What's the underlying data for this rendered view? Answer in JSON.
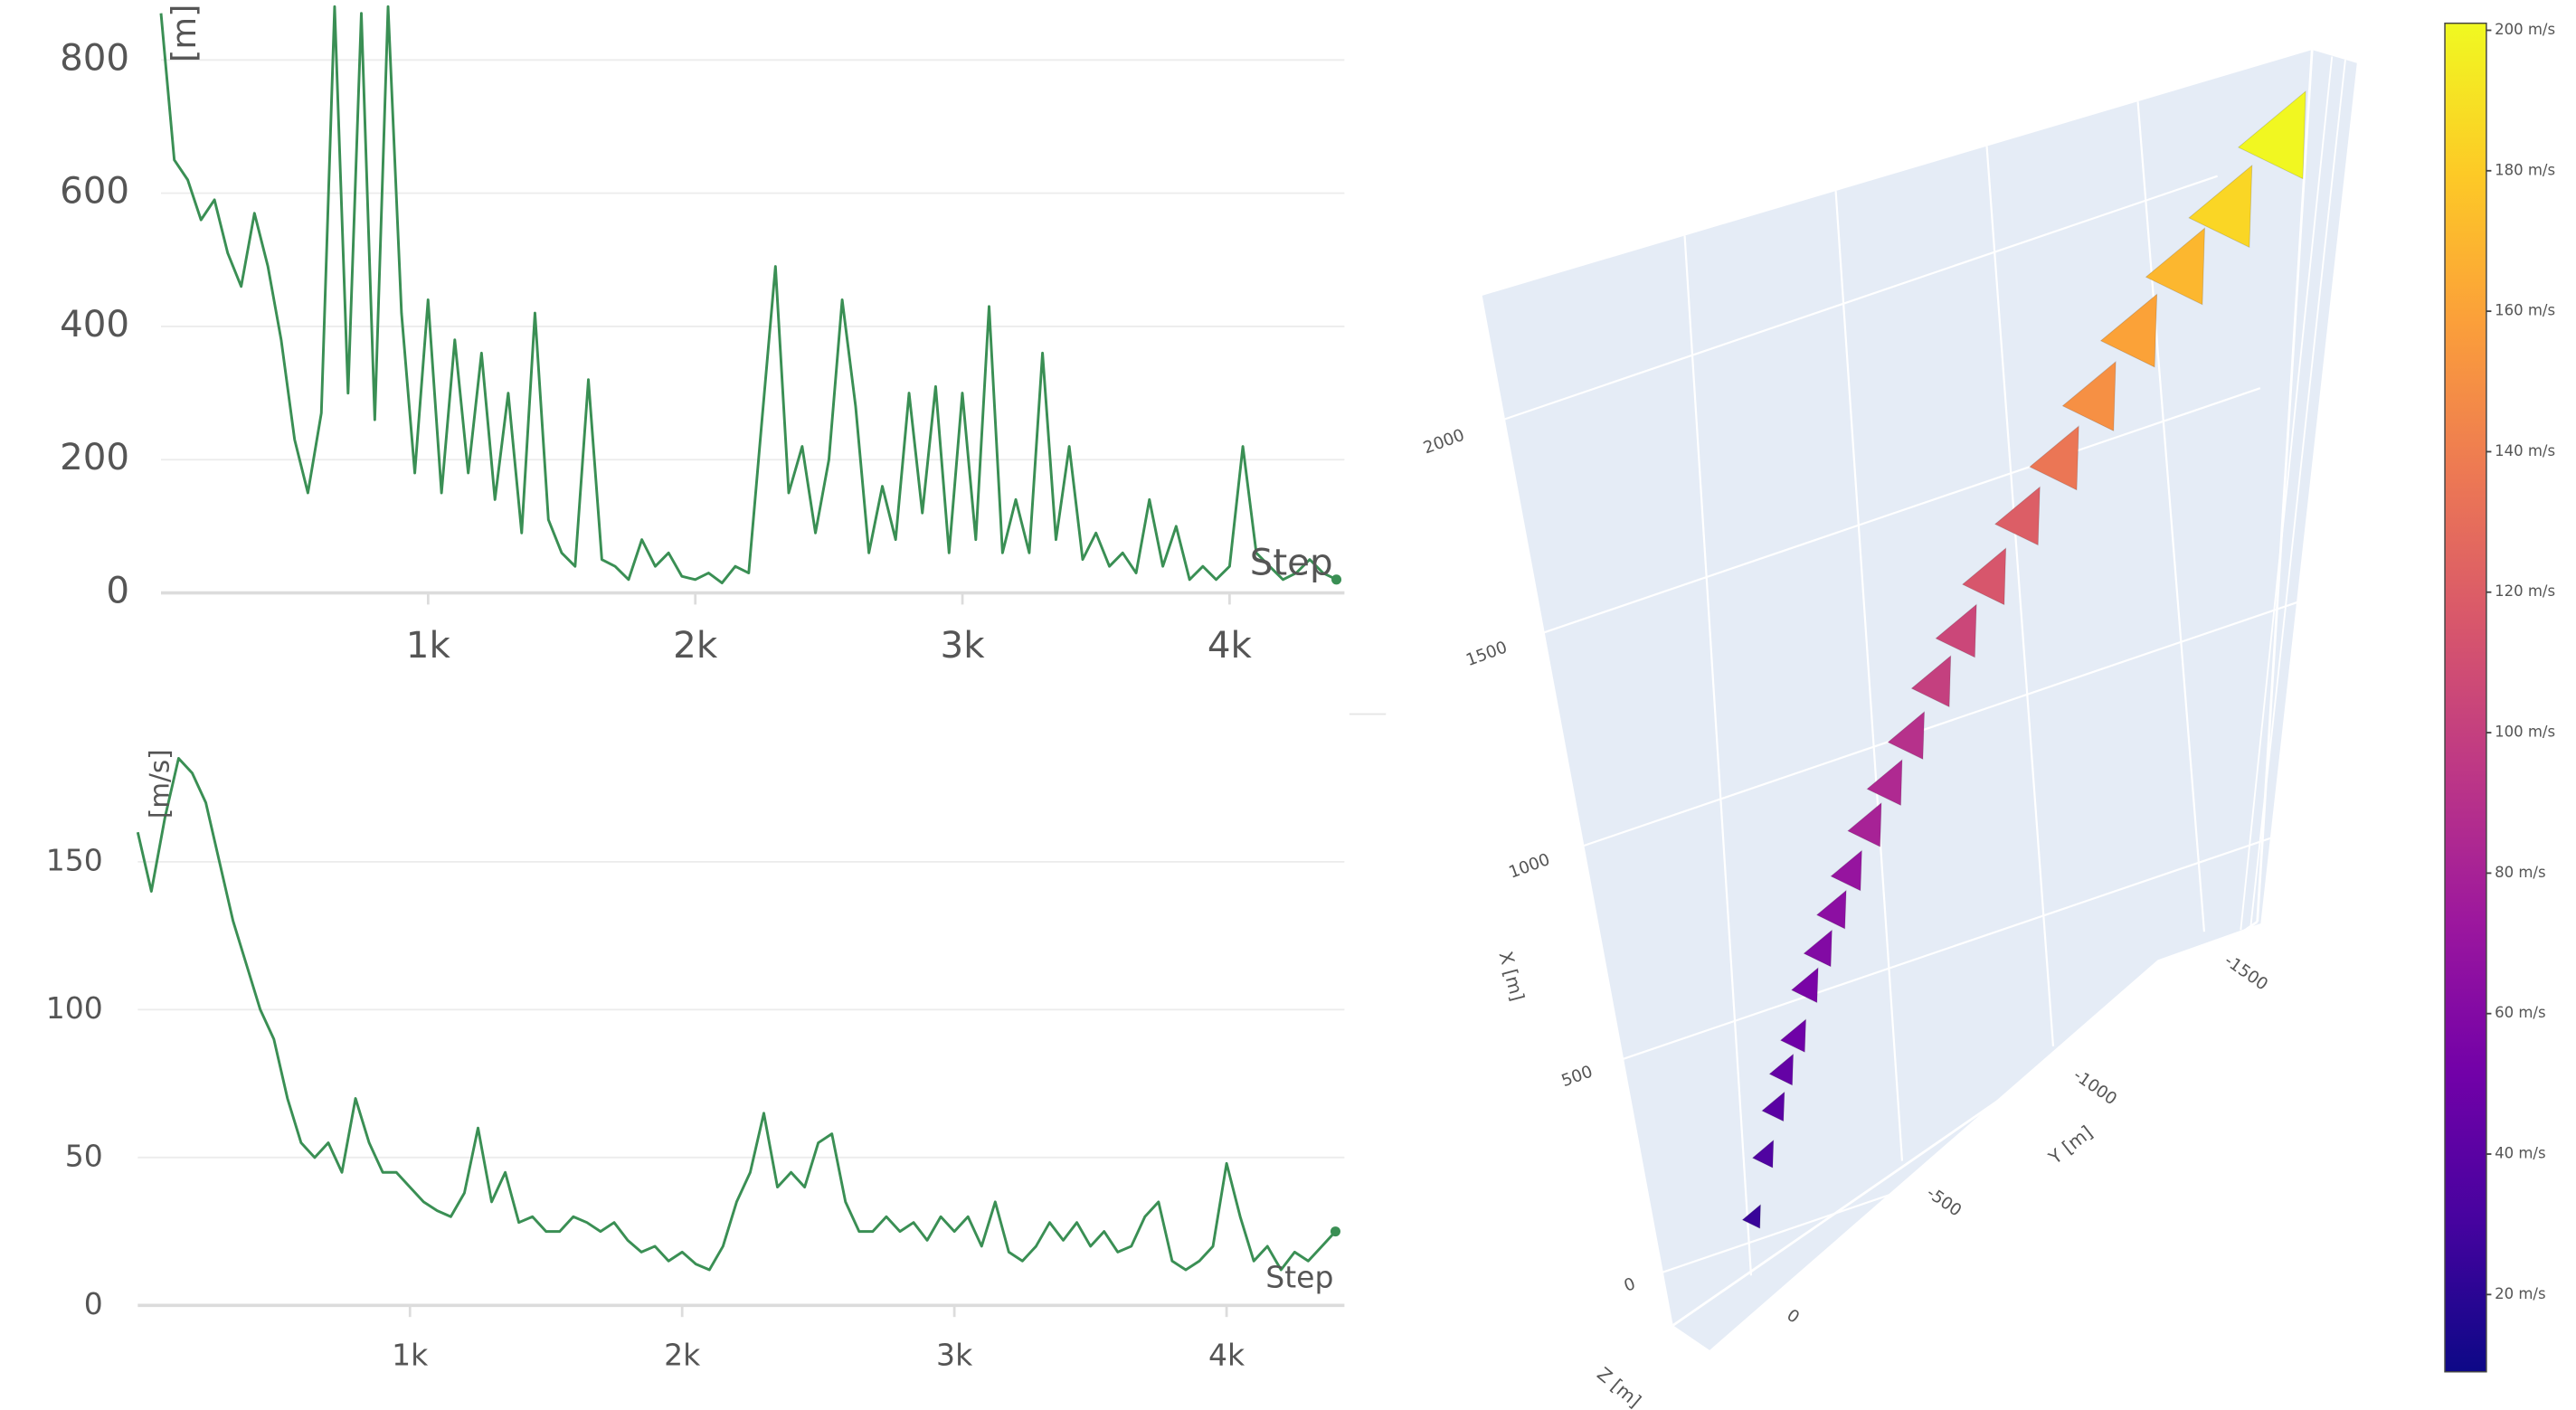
{
  "chart_data": [
    {
      "type": "line",
      "y_label": "[m]",
      "x_label": "Step",
      "color": "#3a8f54",
      "grid": true,
      "xlim": [
        0,
        4430
      ],
      "ylim": [
        0,
        890
      ],
      "xticks": [
        {
          "value": 1000,
          "label": "1k"
        },
        {
          "value": 2000,
          "label": "2k"
        },
        {
          "value": 3000,
          "label": "3k"
        },
        {
          "value": 4000,
          "label": "4k"
        }
      ],
      "yticks": [
        0,
        200,
        400,
        600,
        800
      ],
      "x": [
        0,
        50,
        100,
        150,
        200,
        250,
        300,
        350,
        400,
        450,
        500,
        550,
        600,
        650,
        700,
        750,
        800,
        850,
        900,
        950,
        1000,
        1050,
        1100,
        1150,
        1200,
        1250,
        1300,
        1350,
        1400,
        1450,
        1500,
        1550,
        1600,
        1650,
        1700,
        1750,
        1800,
        1850,
        1900,
        1950,
        2000,
        2050,
        2100,
        2150,
        2200,
        2250,
        2300,
        2350,
        2400,
        2450,
        2500,
        2550,
        2600,
        2650,
        2700,
        2750,
        2800,
        2850,
        2900,
        2950,
        3000,
        3050,
        3100,
        3150,
        3200,
        3250,
        3300,
        3350,
        3400,
        3450,
        3500,
        3550,
        3600,
        3650,
        3700,
        3750,
        3800,
        3850,
        3900,
        3950,
        4000,
        4050,
        4100,
        4150,
        4200,
        4250,
        4300,
        4350,
        4400
      ],
      "values": [
        870,
        650,
        620,
        560,
        590,
        510,
        460,
        570,
        490,
        380,
        230,
        150,
        270,
        880,
        300,
        870,
        260,
        880,
        420,
        180,
        440,
        150,
        380,
        180,
        360,
        140,
        300,
        90,
        420,
        110,
        60,
        40,
        320,
        50,
        40,
        20,
        80,
        40,
        60,
        25,
        20,
        30,
        15,
        40,
        30,
        260,
        490,
        150,
        220,
        90,
        200,
        440,
        280,
        60,
        160,
        80,
        300,
        120,
        310,
        60,
        300,
        80,
        430,
        60,
        140,
        60,
        360,
        80,
        220,
        50,
        90,
        40,
        60,
        30,
        140,
        40,
        100,
        20,
        40,
        20,
        40,
        220,
        60,
        40,
        20,
        30,
        50,
        30,
        20
      ]
    },
    {
      "type": "line",
      "y_label": "[m/s]",
      "x_label": "Step",
      "color": "#3a8f54",
      "grid": true,
      "xlim": [
        0,
        4433
      ],
      "ylim": [
        0,
        196
      ],
      "xticks": [
        {
          "value": 1000,
          "label": "1k"
        },
        {
          "value": 2000,
          "label": "2k"
        },
        {
          "value": 3000,
          "label": "3k"
        },
        {
          "value": 4000,
          "label": "4k"
        }
      ],
      "yticks": [
        0,
        50,
        100,
        150
      ],
      "x": [
        0,
        50,
        100,
        150,
        200,
        250,
        300,
        350,
        400,
        450,
        500,
        550,
        600,
        650,
        700,
        750,
        800,
        850,
        900,
        950,
        1000,
        1050,
        1100,
        1150,
        1200,
        1250,
        1300,
        1350,
        1400,
        1450,
        1500,
        1550,
        1600,
        1650,
        1700,
        1750,
        1800,
        1850,
        1900,
        1950,
        2000,
        2050,
        2100,
        2150,
        2200,
        2250,
        2300,
        2350,
        2400,
        2450,
        2500,
        2550,
        2600,
        2650,
        2700,
        2750,
        2800,
        2850,
        2900,
        2950,
        3000,
        3050,
        3100,
        3150,
        3200,
        3250,
        3300,
        3350,
        3400,
        3450,
        3500,
        3550,
        3600,
        3650,
        3700,
        3750,
        3800,
        3850,
        3900,
        3950,
        4000,
        4050,
        4100,
        4150,
        4200,
        4250,
        4300,
        4350,
        4400
      ],
      "values": [
        160,
        140,
        165,
        185,
        180,
        170,
        150,
        130,
        115,
        100,
        90,
        70,
        55,
        50,
        55,
        45,
        70,
        55,
        45,
        45,
        40,
        35,
        32,
        30,
        38,
        60,
        35,
        45,
        28,
        30,
        25,
        25,
        30,
        28,
        25,
        28,
        22,
        18,
        20,
        15,
        18,
        14,
        12,
        20,
        35,
        45,
        65,
        40,
        45,
        40,
        55,
        58,
        35,
        25,
        25,
        30,
        25,
        28,
        22,
        30,
        25,
        30,
        20,
        35,
        18,
        15,
        20,
        28,
        22,
        28,
        20,
        25,
        18,
        20,
        30,
        35,
        15,
        12,
        15,
        20,
        48,
        30,
        15,
        20,
        12,
        18,
        15,
        20,
        25
      ]
    },
    {
      "type": "cone",
      "x_label": "X [m]",
      "y_label": "Y [m]",
      "z_label": "Z [m]",
      "xticks": [
        0,
        500,
        1000,
        1500,
        2000
      ],
      "yticks": [
        0,
        -500,
        -1000,
        -1500
      ],
      "x": [
        32,
        211,
        344,
        447,
        530,
        670,
        760,
        855,
        947,
        1052,
        1142,
        1245,
        1361,
        1466,
        1575,
        1693,
        1790,
        1904,
        2021,
        2116,
        2198,
        2302
      ],
      "y": [
        -12,
        -24,
        -38,
        -50,
        -77,
        -95,
        -125,
        -156,
        -192,
        -237,
        -290,
        -346,
        -412,
        -479,
        -556,
        -649,
        -756,
        -855,
        -969,
        -1109,
        -1246,
        -1401
      ],
      "values": [
        25,
        35,
        40,
        45,
        50,
        55,
        60,
        65,
        70,
        80,
        85,
        90,
        100,
        105,
        115,
        120,
        135,
        150,
        160,
        170,
        185,
        200
      ],
      "colorscale": [
        "#0d0887",
        "#46039f",
        "#7201a8",
        "#9c179e",
        "#bd3786",
        "#d8576b",
        "#ed7953",
        "#fb9f3a",
        "#fdca26",
        "#f0f921"
      ],
      "clim": [
        9,
        201
      ],
      "colorbar_ticks": [
        {
          "value": 20,
          "label": "20 m/s"
        },
        {
          "value": 40,
          "label": "40 m/s"
        },
        {
          "value": 60,
          "label": "60 m/s"
        },
        {
          "value": 80,
          "label": "80 m/s"
        },
        {
          "value": 100,
          "label": "100 m/s"
        },
        {
          "value": 120,
          "label": "120 m/s"
        },
        {
          "value": 140,
          "label": "140 m/s"
        },
        {
          "value": 160,
          "label": "160 m/s"
        },
        {
          "value": 180,
          "label": "180 m/s"
        },
        {
          "value": 200,
          "label": "200 m/s"
        }
      ]
    }
  ]
}
